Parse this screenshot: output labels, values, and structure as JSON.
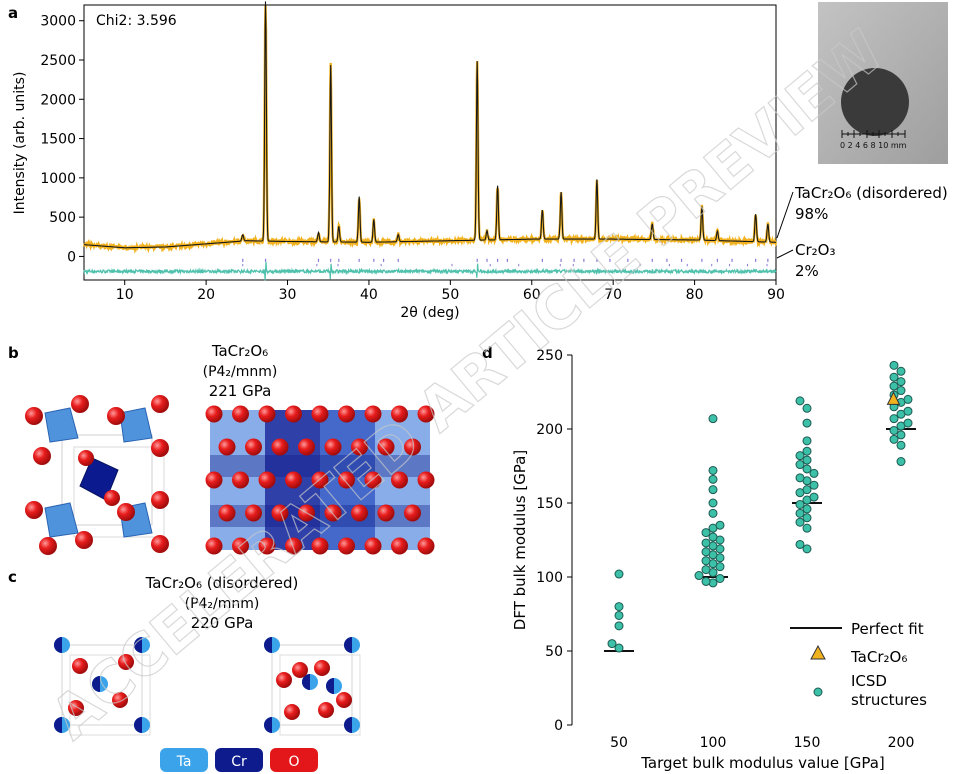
{
  "watermark": "ACCELERATED ARTICLE PREVIEW",
  "panels": {
    "a": {
      "letter": "a",
      "chi_label": "Chi2: 3.596",
      "ylabel": "Intensity (arb. units)",
      "xlabel": "2θ (deg)",
      "phase1_name": "TaCr₂O₆ (disordered)",
      "phase1_pct": "98%",
      "phase2_name": "Cr₂O₃",
      "phase2_pct": "2%",
      "scale_label": "0 2 4 6 8 10 mm",
      "colors": {
        "observed": "#f2b21e",
        "calculated": "#1a1a1a",
        "difference": "#4fc1ac",
        "ticks_phase1": "#8a7ad6",
        "ticks_phase2": "#8a7ad6"
      }
    },
    "b": {
      "letter": "b",
      "title_line1": "TaCr₂O₆",
      "title_line2": "(P4₂/mnm)",
      "title_line3": "221 GPa"
    },
    "c": {
      "letter": "c",
      "title_line1": "TaCr₂O₆ (disordered)",
      "title_line2": "(P4₂/mnm)",
      "title_line3": "220 GPa",
      "legend": [
        {
          "label": "Ta",
          "color": "#3aa3ea"
        },
        {
          "label": "Cr",
          "color": "#0d1b8c"
        },
        {
          "label": "O",
          "color": "#e3171a"
        }
      ]
    },
    "d": {
      "letter": "d",
      "legend_fit": "Perfect fit",
      "legend_tri": "TaCr₂O₆",
      "legend_icsd_1": "ICSD",
      "legend_icsd_2": "structures"
    }
  },
  "chart_data": [
    {
      "panel": "a",
      "type": "line",
      "xlabel": "2θ (deg)",
      "ylabel": "Intensity (arb. units)",
      "xlim": [
        5,
        90
      ],
      "ylim": [
        -300,
        3200
      ],
      "xticks": [
        10,
        20,
        30,
        40,
        50,
        60,
        70,
        80,
        90
      ],
      "yticks": [
        0,
        500,
        1000,
        1500,
        2000,
        2500,
        3000
      ],
      "background": [
        [
          5,
          150
        ],
        [
          10,
          110
        ],
        [
          15,
          120
        ],
        [
          20,
          160
        ],
        [
          25,
          200
        ],
        [
          30,
          190
        ],
        [
          40,
          180
        ],
        [
          50,
          200
        ],
        [
          60,
          220
        ],
        [
          70,
          220
        ],
        [
          80,
          210
        ],
        [
          90,
          180
        ]
      ],
      "peaks": [
        {
          "x": 24.5,
          "h": 80
        },
        {
          "x": 27.3,
          "h": 3050
        },
        {
          "x": 33.8,
          "h": 120
        },
        {
          "x": 35.3,
          "h": 2250
        },
        {
          "x": 36.3,
          "h": 200
        },
        {
          "x": 38.8,
          "h": 580
        },
        {
          "x": 40.6,
          "h": 290
        },
        {
          "x": 43.6,
          "h": 90
        },
        {
          "x": 53.3,
          "h": 2280
        },
        {
          "x": 54.5,
          "h": 120
        },
        {
          "x": 55.8,
          "h": 690
        },
        {
          "x": 61.3,
          "h": 370
        },
        {
          "x": 63.6,
          "h": 600
        },
        {
          "x": 68.0,
          "h": 760
        },
        {
          "x": 74.8,
          "h": 200
        },
        {
          "x": 80.9,
          "h": 430
        },
        {
          "x": 82.8,
          "h": 120
        },
        {
          "x": 87.5,
          "h": 350
        },
        {
          "x": 89.0,
          "h": 230
        }
      ],
      "series": [
        {
          "name": "observed"
        },
        {
          "name": "calculated"
        },
        {
          "name": "difference"
        }
      ],
      "phase1_reflections": [
        24.5,
        27.3,
        33.8,
        35.3,
        36.3,
        38.8,
        40.6,
        41.8,
        43.6,
        53.3,
        54.5,
        55.8,
        57.0,
        61.3,
        63.6,
        65.2,
        66.4,
        68.0,
        69.6,
        71.8,
        74.8,
        76.6,
        78.4,
        80.9,
        82.8,
        84.6,
        87.5,
        89.0
      ],
      "phase2_reflections": [
        24.5,
        33.6,
        36.2,
        41.5,
        50.2,
        54.9,
        58.4,
        63.5,
        65.1,
        73.3,
        76.9,
        79.1,
        82.1,
        84.3,
        86.5,
        88.9
      ],
      "annotations": [
        "Chi2: 3.596"
      ]
    },
    {
      "panel": "d",
      "type": "scatter",
      "xlabel": "Target bulk modulus value [GPa]",
      "ylabel": "DFT bulk modulus [GPa]",
      "xlim": [
        25,
        225
      ],
      "ylim": [
        0,
        250
      ],
      "xticks": [
        50,
        100,
        150,
        200
      ],
      "yticks": [
        0,
        50,
        100,
        150,
        200,
        250
      ],
      "perfect_fit": [
        50,
        100,
        150,
        200
      ],
      "groups": [
        {
          "target": 50,
          "values": [
            102,
            80,
            74,
            67,
            55,
            52
          ]
        },
        {
          "target": 100,
          "values": [
            207,
            172,
            166,
            159,
            150,
            143,
            135,
            133,
            130,
            127,
            125,
            123,
            121,
            119,
            117,
            115,
            113,
            111,
            109,
            107,
            105,
            103,
            101,
            99,
            97,
            96
          ]
        },
        {
          "target": 150,
          "values": [
            219,
            214,
            204,
            192,
            185,
            182,
            179,
            176,
            173,
            170,
            167,
            165,
            162,
            159,
            157,
            154,
            152,
            149,
            146,
            143,
            140,
            137,
            133,
            122,
            119
          ]
        },
        {
          "target": 200,
          "values": [
            243,
            239,
            235,
            232,
            229,
            226,
            223,
            220,
            218,
            215,
            212,
            210,
            207,
            204,
            202,
            199,
            196,
            193,
            189,
            178
          ]
        }
      ],
      "highlight": {
        "name": "TaCr₂O₆",
        "x": 196,
        "y": 220
      },
      "legend": [
        "Perfect fit",
        "TaCr₂O₆",
        "ICSD structures"
      ],
      "colors": {
        "points": "#3cc0a8",
        "triangle": "#f1b21f",
        "fit": "#111111"
      }
    }
  ]
}
